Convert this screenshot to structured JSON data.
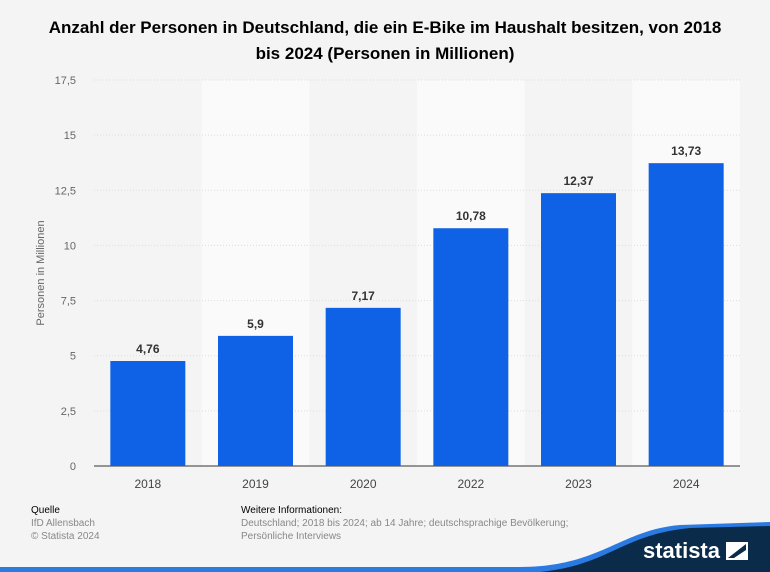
{
  "chart_data": {
    "type": "bar",
    "title": "Anzahl der Personen in Deutschland, die ein E-Bike im Haushalt besitzen, von 2018 bis 2024 (Personen in Millionen)",
    "ylabel": "Personen in Millionen",
    "xlabel": "",
    "categories": [
      "2018",
      "2019",
      "2020",
      "2022",
      "2023",
      "2024"
    ],
    "values": [
      4.76,
      5.9,
      7.17,
      10.78,
      12.37,
      13.73
    ],
    "value_labels": [
      "4,76",
      "5,9",
      "7,17",
      "10,78",
      "12,37",
      "13,73"
    ],
    "ylim": [
      0,
      17.5
    ],
    "yticks": [
      "0",
      "2,5",
      "5",
      "7,5",
      "10",
      "12,5",
      "15",
      "17,5"
    ],
    "grid": true,
    "bar_color": "#0f62e6"
  },
  "footer": {
    "source_heading": "Quelle",
    "source": "IfD Allensbach",
    "copyright": "© Statista 2024",
    "info_heading": "Weitere Informationen:",
    "info_line1": "Deutschland; 2018 bis 2024; ab 14 Jahre; deutschsprachige Bevölkerung;",
    "info_line2": "Persönliche Interviews"
  },
  "logo": "statista"
}
